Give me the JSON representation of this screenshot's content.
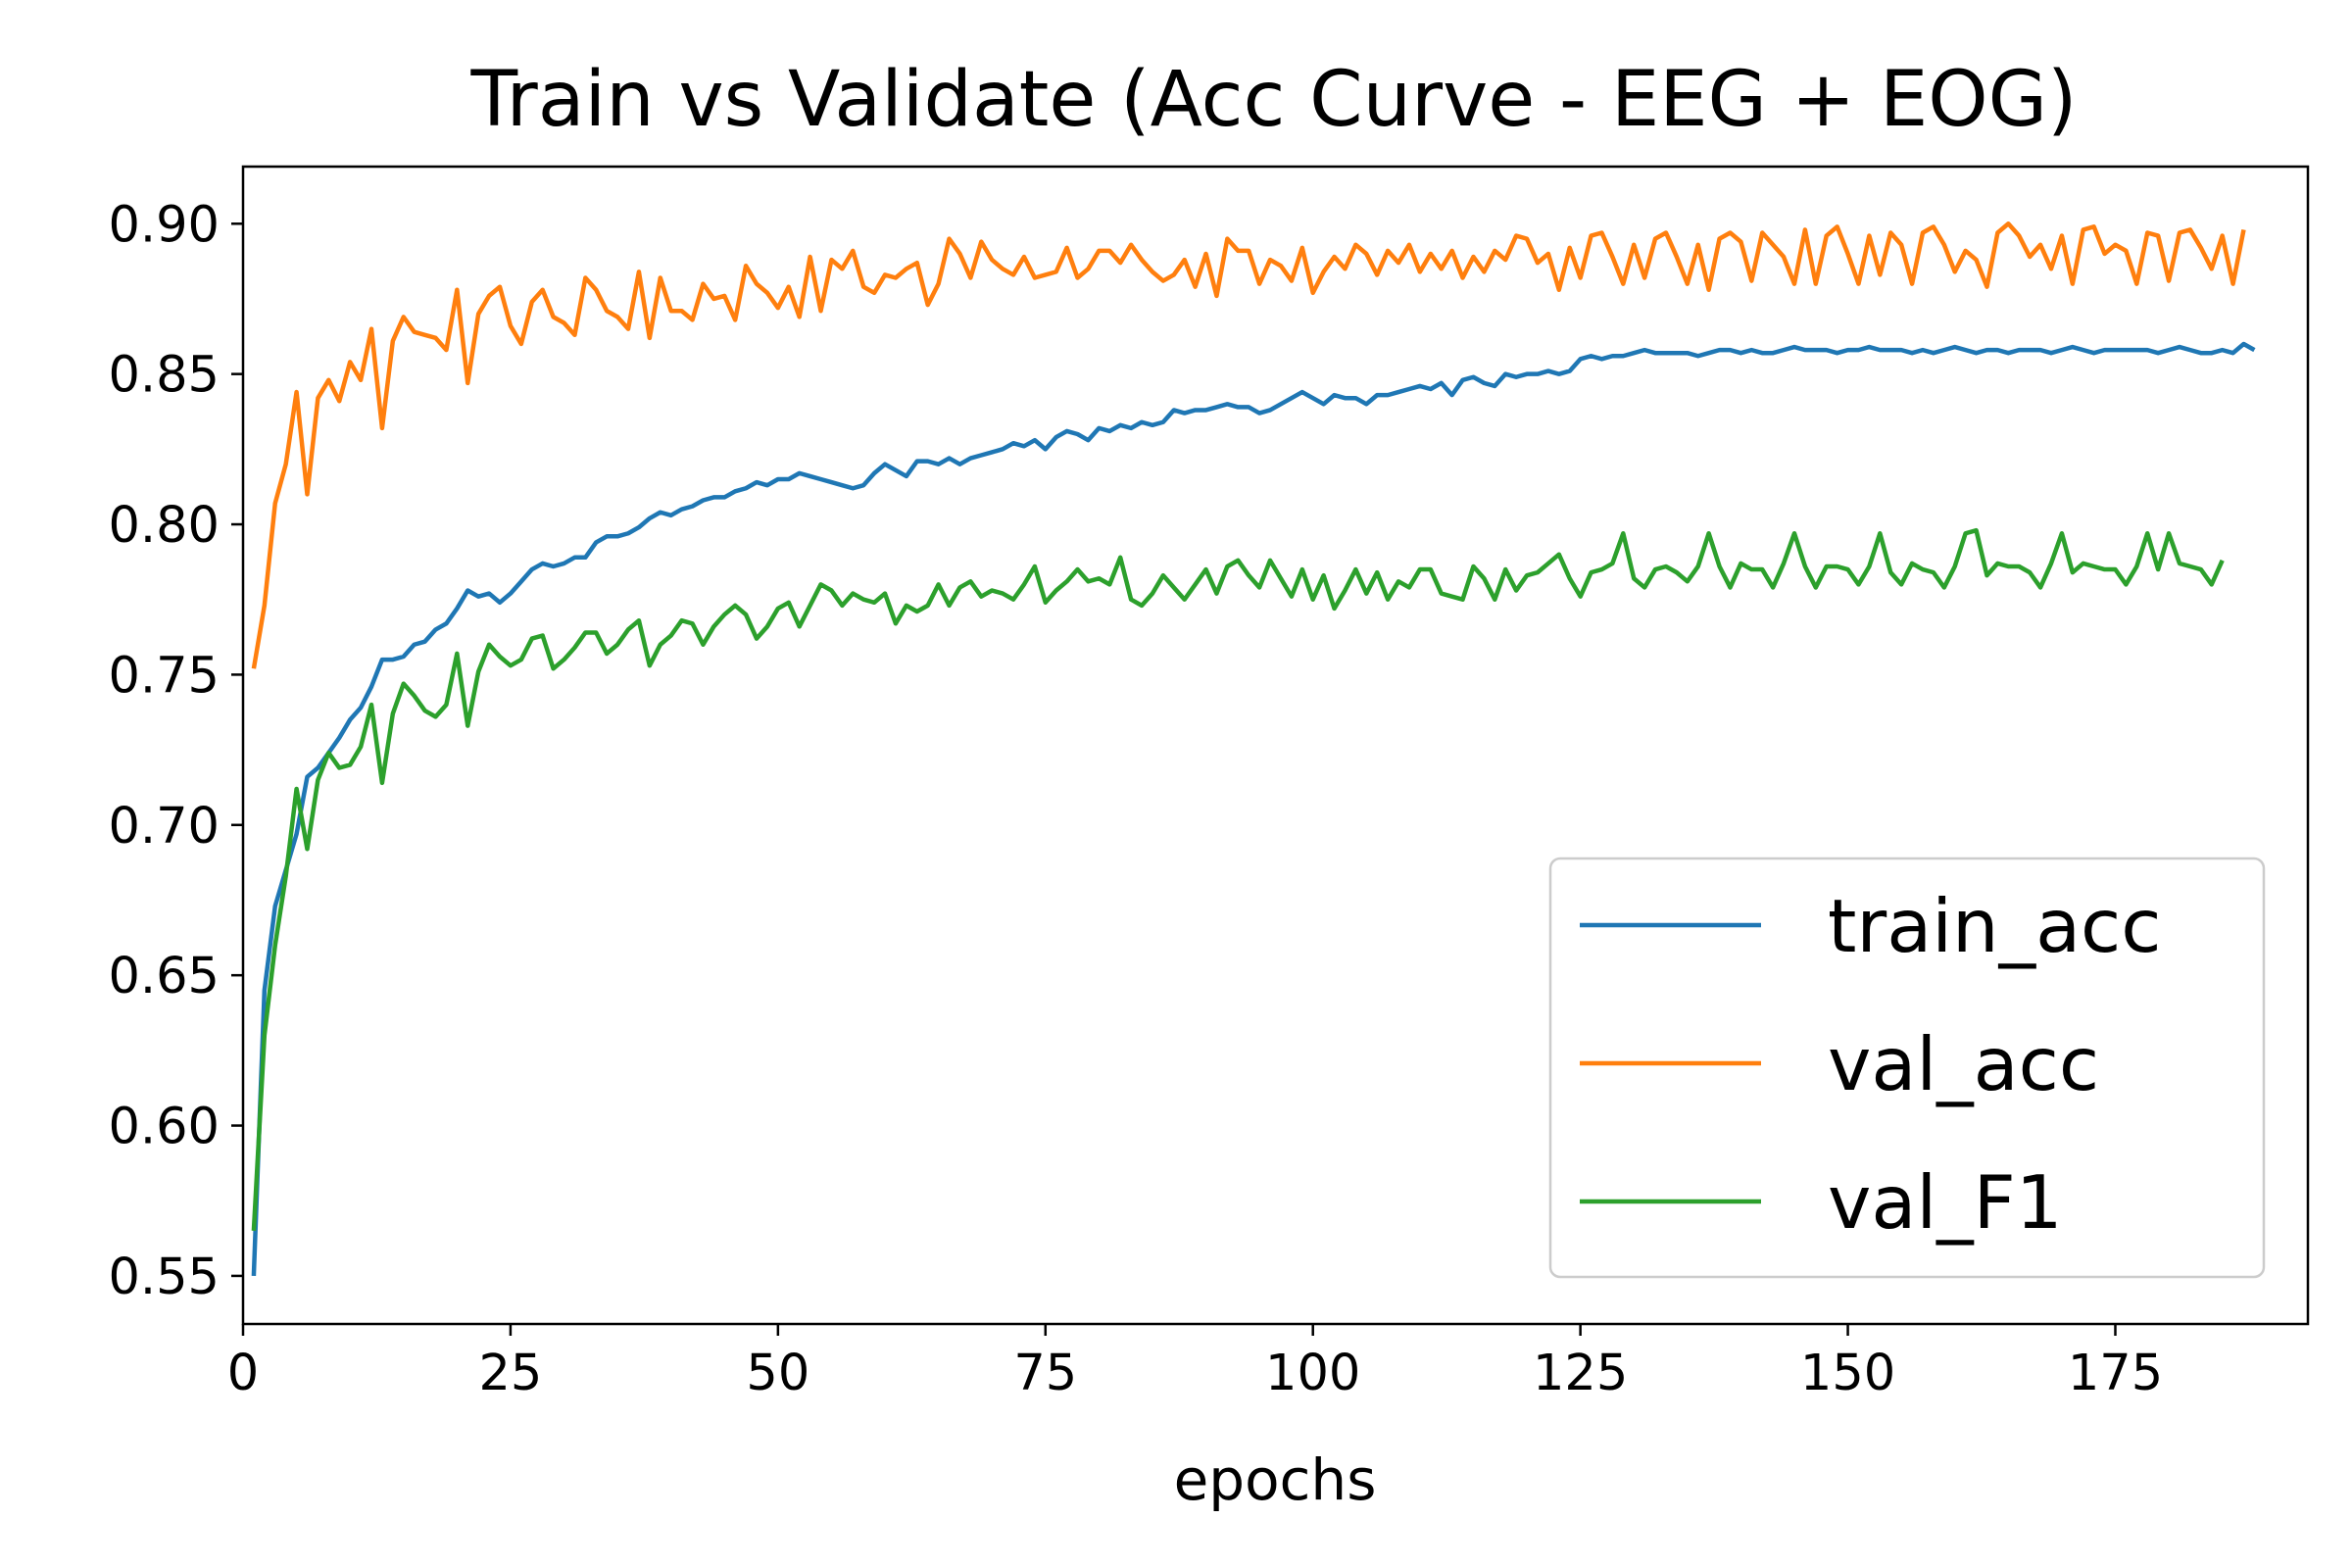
{
  "chart_data": {
    "type": "line",
    "title": "Train vs Validate (Acc Curve - EEG + EOG)",
    "xlabel": "epochs",
    "ylabel": "",
    "xlim": [
      0,
      193
    ],
    "ylim": [
      0.534,
      0.919
    ],
    "x_ticks": [
      0,
      25,
      50,
      75,
      100,
      125,
      150,
      175
    ],
    "y_ticks": [
      0.55,
      0.6,
      0.65,
      0.7,
      0.75,
      0.8,
      0.85,
      0.9
    ],
    "x_tick_labels": [
      "0",
      "25",
      "50",
      "75",
      "100",
      "125",
      "150",
      "175"
    ],
    "y_tick_labels": [
      "0.55",
      "0.60",
      "0.65",
      "0.70",
      "0.75",
      "0.80",
      "0.85",
      "0.90"
    ],
    "grid": false,
    "legend_position": "lower-right",
    "x_start": 1,
    "series": [
      {
        "name": "train_acc",
        "color": "#1f77b4",
        "values": [
          0.55,
          0.645,
          0.673,
          0.685,
          0.697,
          0.716,
          0.719,
          0.724,
          0.729,
          0.735,
          0.739,
          0.746,
          0.755,
          0.755,
          0.756,
          0.76,
          0.761,
          0.765,
          0.767,
          0.772,
          0.778,
          0.776,
          0.777,
          0.774,
          0.777,
          0.781,
          0.785,
          0.787,
          0.786,
          0.787,
          0.789,
          0.789,
          0.794,
          0.796,
          0.796,
          0.797,
          0.799,
          0.802,
          0.804,
          0.803,
          0.805,
          0.806,
          0.808,
          0.809,
          0.809,
          0.811,
          0.812,
          0.814,
          0.813,
          0.815,
          0.815,
          0.817,
          0.816,
          0.815,
          0.814,
          0.813,
          0.812,
          0.813,
          0.817,
          0.82,
          0.818,
          0.816,
          0.821,
          0.821,
          0.82,
          0.822,
          0.82,
          0.822,
          0.823,
          0.824,
          0.825,
          0.827,
          0.826,
          0.828,
          0.825,
          0.829,
          0.831,
          0.83,
          0.828,
          0.832,
          0.831,
          0.833,
          0.832,
          0.834,
          0.833,
          0.834,
          0.838,
          0.837,
          0.838,
          0.838,
          0.839,
          0.84,
          0.839,
          0.839,
          0.837,
          0.838,
          0.84,
          0.842,
          0.844,
          0.842,
          0.84,
          0.843,
          0.842,
          0.842,
          0.84,
          0.843,
          0.843,
          0.844,
          0.845,
          0.846,
          0.845,
          0.847,
          0.843,
          0.848,
          0.849,
          0.847,
          0.846,
          0.85,
          0.849,
          0.85,
          0.85,
          0.851,
          0.85,
          0.851,
          0.855,
          0.856,
          0.855,
          0.856,
          0.856,
          0.857,
          0.858,
          0.857,
          0.857,
          0.857,
          0.857,
          0.856,
          0.857,
          0.858,
          0.858,
          0.857,
          0.858,
          0.857,
          0.857,
          0.858,
          0.859,
          0.858,
          0.858,
          0.858,
          0.857,
          0.858,
          0.858,
          0.859,
          0.858,
          0.858,
          0.858,
          0.857,
          0.858,
          0.857,
          0.858,
          0.859,
          0.858,
          0.857,
          0.858,
          0.858,
          0.857,
          0.858,
          0.858,
          0.858,
          0.857,
          0.858,
          0.859,
          0.858,
          0.857,
          0.858,
          0.858,
          0.858,
          0.858,
          0.858,
          0.857,
          0.858,
          0.859,
          0.858,
          0.857,
          0.857,
          0.858,
          0.857,
          0.86,
          0.858
        ]
      },
      {
        "name": "val_acc",
        "color": "#ff7f0e",
        "values": [
          0.752,
          0.773,
          0.807,
          0.82,
          0.844,
          0.81,
          0.842,
          0.848,
          0.841,
          0.854,
          0.848,
          0.865,
          0.832,
          0.861,
          0.869,
          0.864,
          0.863,
          0.862,
          0.858,
          0.878,
          0.847,
          0.87,
          0.876,
          0.879,
          0.866,
          0.86,
          0.874,
          0.878,
          0.869,
          0.867,
          0.863,
          0.882,
          0.878,
          0.871,
          0.869,
          0.865,
          0.884,
          0.862,
          0.882,
          0.871,
          0.871,
          0.868,
          0.88,
          0.875,
          0.876,
          0.868,
          0.886,
          0.88,
          0.877,
          0.872,
          0.879,
          0.869,
          0.889,
          0.871,
          0.888,
          0.885,
          0.891,
          0.879,
          0.877,
          0.883,
          0.882,
          0.885,
          0.887,
          0.873,
          0.88,
          0.895,
          0.89,
          0.882,
          0.894,
          0.888,
          0.885,
          0.883,
          0.889,
          0.882,
          0.883,
          0.884,
          0.892,
          0.882,
          0.885,
          0.891,
          0.891,
          0.887,
          0.893,
          0.888,
          0.884,
          0.881,
          0.883,
          0.888,
          0.879,
          0.89,
          0.876,
          0.895,
          0.891,
          0.891,
          0.88,
          0.888,
          0.886,
          0.881,
          0.892,
          0.877,
          0.884,
          0.889,
          0.885,
          0.893,
          0.89,
          0.883,
          0.891,
          0.887,
          0.893,
          0.884,
          0.89,
          0.885,
          0.891,
          0.882,
          0.889,
          0.884,
          0.891,
          0.888,
          0.896,
          0.895,
          0.887,
          0.89,
          0.878,
          0.892,
          0.882,
          0.896,
          0.897,
          0.889,
          0.88,
          0.893,
          0.882,
          0.895,
          0.897,
          0.889,
          0.88,
          0.893,
          0.878,
          0.895,
          0.897,
          0.894,
          0.881,
          0.897,
          0.893,
          0.889,
          0.88,
          0.898,
          0.88,
          0.896,
          0.899,
          0.89,
          0.88,
          0.896,
          0.883,
          0.897,
          0.893,
          0.88,
          0.897,
          0.899,
          0.893,
          0.884,
          0.891,
          0.888,
          0.879,
          0.897,
          0.9,
          0.896,
          0.889,
          0.893,
          0.885,
          0.896,
          0.88,
          0.898,
          0.899,
          0.89,
          0.893,
          0.891,
          0.88,
          0.897,
          0.896,
          0.881,
          0.897,
          0.898,
          0.892,
          0.885,
          0.896,
          0.88,
          0.898
        ]
      },
      {
        "name": "val_F1",
        "color": "#2ca02c",
        "values": [
          0.565,
          0.63,
          0.66,
          0.683,
          0.712,
          0.692,
          0.715,
          0.724,
          0.719,
          0.72,
          0.726,
          0.74,
          0.714,
          0.737,
          0.747,
          0.743,
          0.738,
          0.736,
          0.74,
          0.757,
          0.733,
          0.751,
          0.76,
          0.756,
          0.753,
          0.755,
          0.762,
          0.763,
          0.752,
          0.755,
          0.759,
          0.764,
          0.764,
          0.757,
          0.76,
          0.765,
          0.768,
          0.753,
          0.76,
          0.763,
          0.768,
          0.767,
          0.76,
          0.766,
          0.77,
          0.773,
          0.77,
          0.762,
          0.766,
          0.772,
          0.774,
          0.766,
          0.773,
          0.78,
          0.778,
          0.773,
          0.777,
          0.775,
          0.774,
          0.777,
          0.767,
          0.773,
          0.771,
          0.773,
          0.78,
          0.773,
          0.779,
          0.781,
          0.776,
          0.778,
          0.777,
          0.775,
          0.78,
          0.786,
          0.774,
          0.778,
          0.781,
          0.785,
          0.781,
          0.782,
          0.78,
          0.789,
          0.775,
          0.773,
          0.777,
          0.783,
          0.779,
          0.775,
          0.78,
          0.785,
          0.777,
          0.786,
          0.788,
          0.783,
          0.779,
          0.788,
          0.782,
          0.776,
          0.785,
          0.775,
          0.783,
          0.772,
          0.778,
          0.785,
          0.777,
          0.784,
          0.775,
          0.781,
          0.779,
          0.785,
          0.785,
          0.777,
          0.776,
          0.775,
          0.786,
          0.782,
          0.775,
          0.785,
          0.778,
          0.783,
          0.784,
          0.787,
          0.79,
          0.782,
          0.776,
          0.784,
          0.785,
          0.787,
          0.797,
          0.782,
          0.779,
          0.785,
          0.786,
          0.784,
          0.781,
          0.786,
          0.797,
          0.786,
          0.779,
          0.787,
          0.785,
          0.785,
          0.779,
          0.787,
          0.797,
          0.786,
          0.779,
          0.786,
          0.786,
          0.785,
          0.78,
          0.786,
          0.797,
          0.784,
          0.78,
          0.787,
          0.785,
          0.784,
          0.779,
          0.786,
          0.797,
          0.798,
          0.783,
          0.787,
          0.786,
          0.786,
          0.784,
          0.779,
          0.787,
          0.797,
          0.784,
          0.787,
          0.786,
          0.785,
          0.785,
          0.78,
          0.786,
          0.797,
          0.785,
          0.797,
          0.787,
          0.786,
          0.785,
          0.78,
          0.788
        ]
      }
    ]
  }
}
